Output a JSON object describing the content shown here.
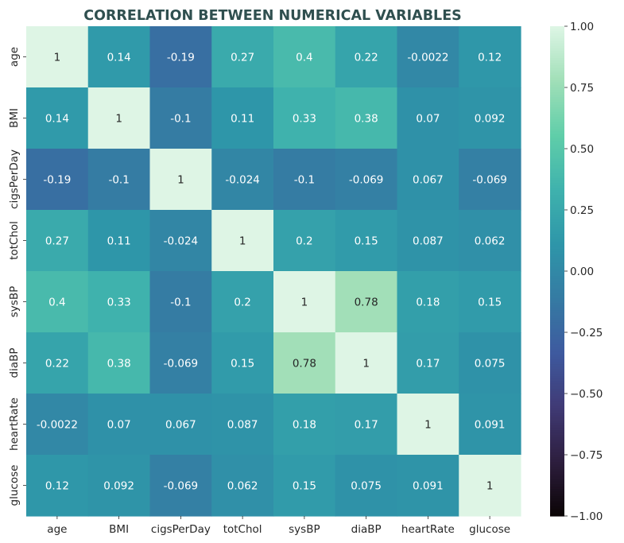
{
  "chart_data": {
    "type": "heatmap",
    "title": "CORRELATION BETWEEN NUMERICAL VARIABLES",
    "x_labels": [
      "age",
      "BMI",
      "cigsPerDay",
      "totChol",
      "sysBP",
      "diaBP",
      "heartRate",
      "glucose"
    ],
    "y_labels": [
      "age",
      "BMI",
      "cigsPerDay",
      "totChol",
      "sysBP",
      "diaBP",
      "heartRate",
      "glucose"
    ],
    "values": [
      [
        1,
        0.14,
        -0.19,
        0.27,
        0.4,
        0.22,
        -0.0022,
        0.12
      ],
      [
        0.14,
        1,
        -0.1,
        0.11,
        0.33,
        0.38,
        0.07,
        0.092
      ],
      [
        -0.19,
        -0.1,
        1,
        -0.024,
        -0.1,
        -0.069,
        0.067,
        -0.069
      ],
      [
        0.27,
        0.11,
        -0.024,
        1,
        0.2,
        0.15,
        0.087,
        0.062
      ],
      [
        0.4,
        0.33,
        -0.1,
        0.2,
        1,
        0.78,
        0.18,
        0.15
      ],
      [
        0.22,
        0.38,
        -0.069,
        0.15,
        0.78,
        1,
        0.17,
        0.075
      ],
      [
        -0.0022,
        0.07,
        0.067,
        0.087,
        0.18,
        0.17,
        1,
        0.091
      ],
      [
        0.12,
        0.092,
        -0.069,
        0.062,
        0.15,
        0.075,
        0.091,
        1
      ]
    ],
    "colorbar": {
      "range": [
        -1,
        1
      ],
      "ticks": [
        "1.00",
        "0.75",
        "0.50",
        "0.25",
        "0.00",
        "−0.25",
        "−0.50",
        "−0.75",
        "−1.00"
      ],
      "tick_values": [
        1,
        0.75,
        0.5,
        0.25,
        0,
        -0.25,
        -0.5,
        -0.75,
        -1
      ],
      "colormap": "mako",
      "colormap_stops": [
        "#0b0405",
        "#2d1e3e",
        "#403a75",
        "#3e5a9f",
        "#357ba3",
        "#2e96a9",
        "#3fb2ad",
        "#60cea9",
        "#a1dfb8",
        "#def5e5"
      ]
    },
    "annotation_colors": {
      "light": "#ffffff",
      "dark": "#262626"
    }
  }
}
